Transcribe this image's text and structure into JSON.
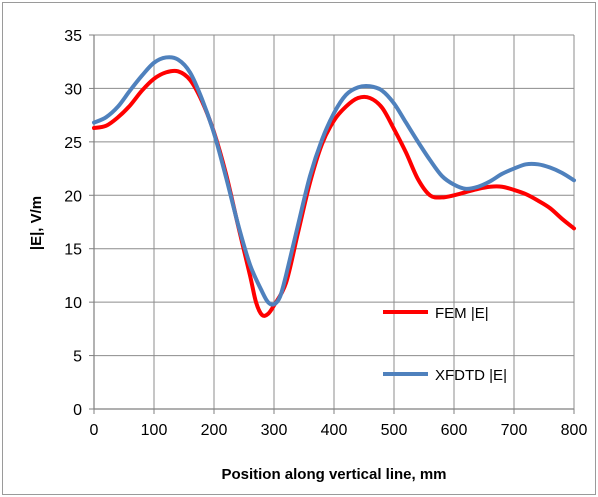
{
  "chart_data": {
    "type": "line",
    "title": "",
    "xlabel": "Position along vertical line, mm",
    "ylabel": "|E|, V/m",
    "xlim": [
      0,
      800
    ],
    "ylim": [
      0,
      35
    ],
    "x_ticks": [
      0,
      100,
      200,
      300,
      400,
      500,
      600,
      700,
      800
    ],
    "y_ticks": [
      0,
      5,
      10,
      15,
      20,
      25,
      30,
      35
    ],
    "grid": true,
    "legend_position": "bottom-right",
    "series": [
      {
        "name": "FEM |E|",
        "color": "#ff0000",
        "x": [
          0,
          20,
          40,
          60,
          80,
          100,
          120,
          140,
          160,
          180,
          200,
          220,
          240,
          260,
          270,
          280,
          290,
          300,
          320,
          340,
          360,
          380,
          400,
          420,
          440,
          460,
          480,
          500,
          520,
          540,
          560,
          580,
          600,
          620,
          640,
          660,
          680,
          700,
          720,
          740,
          760,
          780,
          800
        ],
        "y": [
          26.3,
          26.5,
          27.3,
          28.4,
          29.8,
          30.9,
          31.5,
          31.6,
          30.8,
          28.8,
          25.9,
          22.0,
          17.2,
          12.5,
          10.0,
          8.8,
          8.9,
          9.7,
          11.8,
          16.5,
          21.2,
          24.8,
          27.0,
          28.3,
          29.1,
          29.1,
          28.2,
          26.2,
          24.0,
          21.5,
          20.0,
          19.8,
          20.0,
          20.3,
          20.6,
          20.8,
          20.8,
          20.5,
          20.1,
          19.5,
          18.8,
          17.8,
          16.9
        ]
      },
      {
        "name": "XFDTD |E|",
        "color": "#4f81bd",
        "x": [
          0,
          20,
          40,
          60,
          80,
          100,
          120,
          140,
          160,
          180,
          200,
          220,
          240,
          260,
          280,
          290,
          300,
          310,
          320,
          340,
          360,
          380,
          400,
          420,
          440,
          460,
          480,
          500,
          520,
          540,
          560,
          580,
          600,
          620,
          640,
          660,
          680,
          700,
          720,
          740,
          760,
          780,
          800
        ],
        "y": [
          26.8,
          27.3,
          28.3,
          29.8,
          31.2,
          32.4,
          32.9,
          32.7,
          31.5,
          29.0,
          25.8,
          21.7,
          17.3,
          13.5,
          11.0,
          10.0,
          9.8,
          10.5,
          12.5,
          17.2,
          21.8,
          25.2,
          27.7,
          29.4,
          30.1,
          30.2,
          29.8,
          28.6,
          26.8,
          25.0,
          23.3,
          21.8,
          21.0,
          20.6,
          20.8,
          21.3,
          22.0,
          22.5,
          22.9,
          22.9,
          22.6,
          22.1,
          21.4
        ]
      }
    ]
  }
}
